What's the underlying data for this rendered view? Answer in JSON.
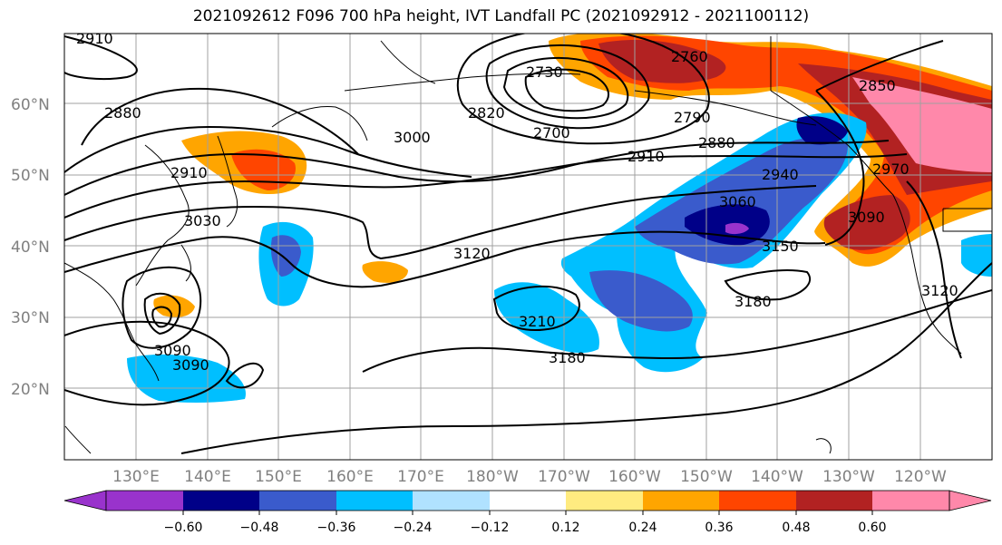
{
  "title": "2021092612 F096 700 hPa height, IVT Landfall PC (2021092912 - 2021100112)",
  "map": {
    "lat_labels": [
      "60°N",
      "50°N",
      "40°N",
      "30°N",
      "20°N"
    ],
    "lon_labels": [
      "130°E",
      "140°E",
      "150°E",
      "160°E",
      "170°E",
      "180°W",
      "170°W",
      "160°W",
      "150°W",
      "140°W",
      "130°W",
      "120°W"
    ],
    "contour_labels": [
      "2910",
      "2880",
      "2910",
      "3030",
      "3000",
      "2820",
      "2730",
      "2760",
      "2700",
      "2790",
      "2880",
      "2910",
      "2940",
      "3060",
      "3150",
      "3180",
      "3120",
      "3210",
      "3180",
      "3090",
      "2850",
      "2970",
      "3090",
      "3120",
      "3090"
    ]
  },
  "colorbar": {
    "colors": [
      "#9933cc",
      "#000088",
      "#3a5bcc",
      "#00bfff",
      "#b0e2ff",
      "#ffffff",
      "#ffeb80",
      "#ffa500",
      "#ff4500",
      "#b22222",
      "#ff88aa"
    ],
    "ticks": [
      "−0.60",
      "−0.48",
      "−0.36",
      "−0.24",
      "−0.12",
      "0.12",
      "0.24",
      "0.36",
      "0.48",
      "0.60"
    ]
  }
}
